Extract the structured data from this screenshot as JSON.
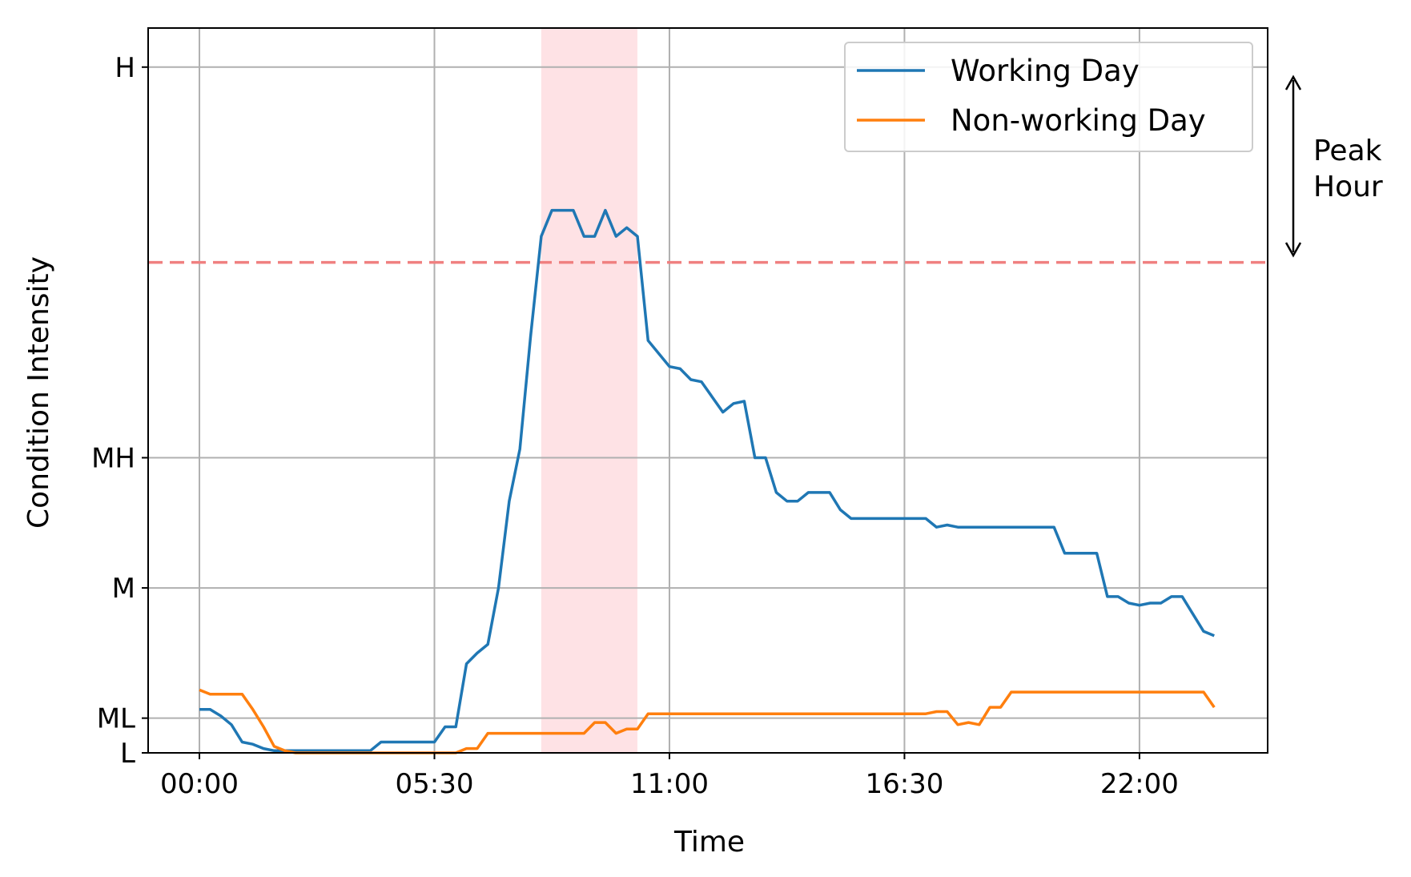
{
  "chart_data": {
    "type": "line",
    "xlabel": "Time",
    "ylabel": "Condition Intensity",
    "x_ticks": [
      "00:00",
      "05:30",
      "11:00",
      "16:30",
      "22:00"
    ],
    "x_tick_hours": [
      0,
      5.5,
      11,
      16.5,
      22
    ],
    "y_ticks": [
      {
        "label": "L",
        "value": 0.07
      },
      {
        "label": "ML",
        "value": 0.15
      },
      {
        "label": "M",
        "value": 0.45
      },
      {
        "label": "MH",
        "value": 0.75
      },
      {
        "label": "H",
        "value": 1.65
      }
    ],
    "xlim": [
      -1.2,
      25
    ],
    "ylim": [
      0.07,
      1.74
    ],
    "grid": true,
    "legend_position": "top-right",
    "threshold": {
      "value": 1.2,
      "color": "#f08080",
      "style": "dashed"
    },
    "highlight_band": {
      "x_start": 8.0,
      "x_end": 10.25,
      "color": "#fdd5da"
    },
    "annotation": {
      "text_lines": [
        "Peak",
        "Hour"
      ]
    },
    "series": [
      {
        "name": "Working Day",
        "color": "#1f77b4",
        "x": [
          0,
          0.25,
          0.5,
          0.75,
          1.0,
          1.25,
          1.5,
          1.75,
          2.0,
          2.25,
          2.5,
          2.75,
          3.0,
          3.25,
          3.5,
          3.75,
          4.0,
          4.25,
          4.5,
          4.75,
          5.0,
          5.25,
          5.5,
          5.75,
          6.0,
          6.25,
          6.5,
          6.75,
          7.0,
          7.25,
          7.5,
          7.75,
          8.0,
          8.25,
          8.5,
          8.75,
          9.0,
          9.25,
          9.5,
          9.75,
          10.0,
          10.25,
          10.5,
          10.75,
          11.0,
          11.25,
          11.5,
          11.75,
          12.0,
          12.25,
          12.5,
          12.75,
          13.0,
          13.25,
          13.5,
          13.75,
          14.0,
          14.25,
          14.5,
          14.75,
          15.0,
          15.25,
          15.5,
          15.75,
          16.0,
          16.25,
          16.5,
          16.75,
          17.0,
          17.25,
          17.5,
          17.75,
          18.0,
          18.25,
          18.5,
          18.75,
          19.0,
          19.25,
          19.5,
          19.75,
          20.0,
          20.25,
          20.5,
          20.75,
          21.0,
          21.25,
          21.5,
          21.75,
          22.0,
          22.25,
          22.5,
          22.75,
          23.0,
          23.25,
          23.5,
          23.75
        ],
        "y": [
          0.17,
          0.17,
          0.155,
          0.135,
          0.095,
          0.09,
          0.08,
          0.075,
          0.075,
          0.075,
          0.075,
          0.075,
          0.075,
          0.075,
          0.075,
          0.075,
          0.075,
          0.095,
          0.095,
          0.095,
          0.095,
          0.095,
          0.095,
          0.13,
          0.13,
          0.275,
          0.3,
          0.32,
          0.45,
          0.65,
          0.77,
          1.03,
          1.26,
          1.32,
          1.32,
          1.32,
          1.26,
          1.26,
          1.32,
          1.26,
          1.28,
          1.26,
          1.02,
          0.99,
          0.96,
          0.955,
          0.93,
          0.925,
          0.89,
          0.855,
          0.875,
          0.88,
          0.75,
          0.75,
          0.67,
          0.65,
          0.65,
          0.67,
          0.67,
          0.67,
          0.63,
          0.61,
          0.61,
          0.61,
          0.61,
          0.61,
          0.61,
          0.61,
          0.61,
          0.59,
          0.595,
          0.59,
          0.59,
          0.59,
          0.59,
          0.59,
          0.59,
          0.59,
          0.59,
          0.59,
          0.59,
          0.53,
          0.53,
          0.53,
          0.53,
          0.43,
          0.43,
          0.415,
          0.41,
          0.415,
          0.415,
          0.43,
          0.43,
          0.39,
          0.35,
          0.34
        ]
      },
      {
        "name": "Non-working Day",
        "color": "#ff7f0e",
        "x": [
          0,
          0.25,
          0.5,
          0.75,
          1.0,
          1.25,
          1.5,
          1.75,
          2.0,
          2.25,
          2.5,
          2.75,
          3.0,
          3.25,
          3.5,
          3.75,
          4.0,
          4.25,
          4.5,
          4.75,
          5.0,
          5.25,
          5.5,
          5.75,
          6.0,
          6.25,
          6.5,
          6.75,
          7.0,
          7.25,
          7.5,
          7.75,
          8.0,
          8.25,
          8.5,
          8.75,
          9.0,
          9.25,
          9.5,
          9.75,
          10.0,
          10.25,
          10.5,
          10.75,
          11.0,
          11.25,
          11.5,
          11.75,
          12.0,
          12.25,
          12.5,
          12.75,
          13.0,
          13.25,
          13.5,
          13.75,
          14.0,
          14.25,
          14.5,
          14.75,
          15.0,
          15.25,
          15.5,
          15.75,
          16.0,
          16.25,
          16.5,
          16.75,
          17.0,
          17.25,
          17.5,
          17.75,
          18.0,
          18.25,
          18.5,
          18.75,
          19.0,
          19.25,
          19.5,
          19.75,
          20.0,
          20.25,
          20.5,
          20.75,
          21.0,
          21.25,
          21.5,
          21.75,
          22.0,
          22.25,
          22.5,
          22.75,
          23.0,
          23.25,
          23.5,
          23.75
        ],
        "y": [
          0.215,
          0.205,
          0.205,
          0.205,
          0.205,
          0.17,
          0.13,
          0.085,
          0.075,
          0.07,
          0.07,
          0.07,
          0.07,
          0.07,
          0.07,
          0.07,
          0.07,
          0.07,
          0.07,
          0.07,
          0.07,
          0.07,
          0.07,
          0.07,
          0.07,
          0.08,
          0.08,
          0.115,
          0.115,
          0.115,
          0.115,
          0.115,
          0.115,
          0.115,
          0.115,
          0.115,
          0.115,
          0.14,
          0.14,
          0.115,
          0.125,
          0.125,
          0.16,
          0.16,
          0.16,
          0.16,
          0.16,
          0.16,
          0.16,
          0.16,
          0.16,
          0.16,
          0.16,
          0.16,
          0.16,
          0.16,
          0.16,
          0.16,
          0.16,
          0.16,
          0.16,
          0.16,
          0.16,
          0.16,
          0.16,
          0.16,
          0.16,
          0.16,
          0.16,
          0.165,
          0.165,
          0.135,
          0.14,
          0.135,
          0.175,
          0.175,
          0.21,
          0.21,
          0.21,
          0.21,
          0.21,
          0.21,
          0.21,
          0.21,
          0.21,
          0.21,
          0.21,
          0.21,
          0.21,
          0.21,
          0.21,
          0.21,
          0.21,
          0.21,
          0.21,
          0.175
        ]
      }
    ]
  }
}
